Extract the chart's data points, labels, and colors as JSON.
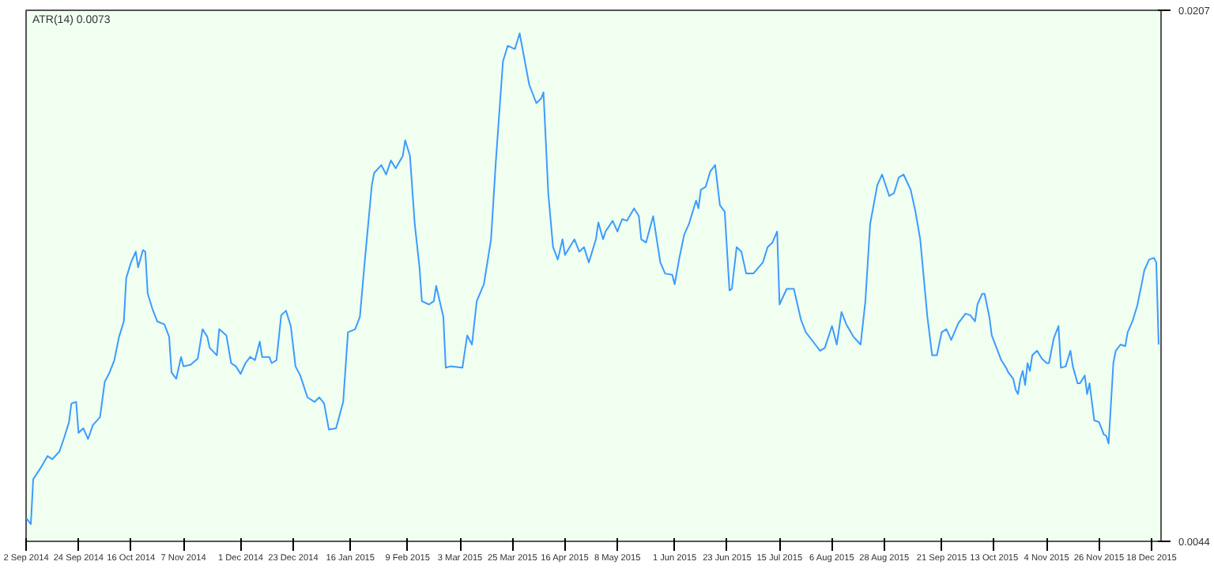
{
  "chart_data": {
    "type": "line",
    "title": "ATR(14) 0.0073",
    "x": [
      "2014-09-02",
      "2014-09-04",
      "2014-09-05",
      "2014-09-08",
      "2014-09-11",
      "2014-09-13",
      "2014-09-16",
      "2014-09-18",
      "2014-09-20",
      "2014-09-21",
      "2014-09-23",
      "2014-09-24",
      "2014-09-26",
      "2014-09-28",
      "2014-09-30",
      "2014-10-03",
      "2014-10-05",
      "2014-10-07",
      "2014-10-09",
      "2014-10-11",
      "2014-10-13",
      "2014-10-14",
      "2014-10-16",
      "2014-10-18",
      "2014-10-19",
      "2014-10-21",
      "2014-10-22",
      "2014-10-23",
      "2014-10-25",
      "2014-10-27",
      "2014-10-30",
      "2014-11-01",
      "2014-11-02",
      "2014-11-04",
      "2014-11-06",
      "2014-11-07",
      "2014-11-10",
      "2014-11-13",
      "2014-11-15",
      "2014-11-17",
      "2014-11-18",
      "2014-11-21",
      "2014-11-22",
      "2014-11-25",
      "2014-11-27",
      "2014-11-29",
      "2014-12-01",
      "2014-12-03",
      "2014-12-05",
      "2014-12-07",
      "2014-12-09",
      "2014-12-10",
      "2014-12-13",
      "2014-12-14",
      "2014-12-16",
      "2014-12-18",
      "2014-12-20",
      "2014-12-22",
      "2014-12-24",
      "2014-12-26",
      "2014-12-29",
      "2015-01-01",
      "2015-01-03",
      "2015-01-05",
      "2015-01-07",
      "2015-01-10",
      "2015-01-13",
      "2015-01-15",
      "2015-01-18",
      "2015-01-20",
      "2015-01-22",
      "2015-01-25",
      "2015-01-26",
      "2015-01-29",
      "2015-01-31",
      "2015-02-02",
      "2015-02-04",
      "2015-02-07",
      "2015-02-08",
      "2015-02-10",
      "2015-02-12",
      "2015-02-14",
      "2015-02-15",
      "2015-02-18",
      "2015-02-20",
      "2015-02-21",
      "2015-02-24",
      "2015-02-25",
      "2015-02-27",
      "2015-03-04",
      "2015-03-06",
      "2015-03-08",
      "2015-03-10",
      "2015-03-13",
      "2015-03-16",
      "2015-03-18",
      "2015-03-21",
      "2015-03-23",
      "2015-03-26",
      "2015-03-28",
      "2015-04-01",
      "2015-04-04",
      "2015-04-06",
      "2015-04-07",
      "2015-04-09",
      "2015-04-11",
      "2015-04-13",
      "2015-04-15",
      "2015-04-16",
      "2015-04-18",
      "2015-04-20",
      "2015-04-22",
      "2015-04-24",
      "2015-04-26",
      "2015-04-29",
      "2015-04-30",
      "2015-05-02",
      "2015-05-03",
      "2015-05-06",
      "2015-05-08",
      "2015-05-10",
      "2015-05-12",
      "2015-05-15",
      "2015-05-17",
      "2015-05-18",
      "2015-05-20",
      "2015-05-23",
      "2015-05-26",
      "2015-05-28",
      "2015-05-31",
      "2015-06-01",
      "2015-06-03",
      "2015-06-05",
      "2015-06-07",
      "2015-06-10",
      "2015-06-11",
      "2015-06-12",
      "2015-06-14",
      "2015-06-16",
      "2015-06-18",
      "2015-06-20",
      "2015-06-22",
      "2015-06-24",
      "2015-06-25",
      "2015-06-27",
      "2015-06-29",
      "2015-07-01",
      "2015-07-04",
      "2015-07-08",
      "2015-07-10",
      "2015-07-12",
      "2015-07-14",
      "2015-07-15",
      "2015-07-18",
      "2015-07-21",
      "2015-07-24",
      "2015-07-26",
      "2015-07-30",
      "2015-08-01",
      "2015-08-03",
      "2015-08-06",
      "2015-08-08",
      "2015-08-10",
      "2015-08-12",
      "2015-08-15",
      "2015-08-18",
      "2015-08-20",
      "2015-08-22",
      "2015-08-25",
      "2015-08-27",
      "2015-08-30",
      "2015-09-01",
      "2015-09-03",
      "2015-09-05",
      "2015-09-08",
      "2015-09-10",
      "2015-09-12",
      "2015-09-15",
      "2015-09-17",
      "2015-09-19",
      "2015-09-21",
      "2015-09-23",
      "2015-09-25",
      "2015-09-28",
      "2015-10-01",
      "2015-10-03",
      "2015-10-05",
      "2015-10-06",
      "2015-10-08",
      "2015-10-09",
      "2015-10-11",
      "2015-10-12",
      "2015-10-14",
      "2015-10-16",
      "2015-10-18",
      "2015-10-19",
      "2015-10-21",
      "2015-10-22",
      "2015-10-23",
      "2015-10-24",
      "2015-10-25",
      "2015-10-26",
      "2015-10-27",
      "2015-10-28",
      "2015-10-29",
      "2015-10-31",
      "2015-11-02",
      "2015-11-04",
      "2015-11-05",
      "2015-11-07",
      "2015-11-08",
      "2015-11-09",
      "2015-11-10",
      "2015-11-12",
      "2015-11-14",
      "2015-11-15",
      "2015-11-17",
      "2015-11-18",
      "2015-11-20",
      "2015-11-21",
      "2015-11-22",
      "2015-11-23",
      "2015-11-24",
      "2015-11-26",
      "2015-11-28",
      "2015-11-29",
      "2015-11-30",
      "2015-12-02",
      "2015-12-03",
      "2015-12-05",
      "2015-12-07",
      "2015-12-08",
      "2015-12-10",
      "2015-12-12",
      "2015-12-14",
      "2015-12-15",
      "2015-12-17",
      "2015-12-19",
      "2015-12-20",
      "2015-12-21"
    ],
    "series": [
      {
        "color": "#3d9bff",
        "values": [
          0.00512,
          0.00493,
          0.00631,
          0.00664,
          0.00702,
          0.00692,
          0.00716,
          0.00759,
          0.00806,
          0.00863,
          0.00868,
          0.00773,
          0.00787,
          0.00754,
          0.00797,
          0.00821,
          0.0093,
          0.00958,
          0.00996,
          0.01068,
          0.01115,
          0.01248,
          0.01296,
          0.01329,
          0.01281,
          0.01334,
          0.01329,
          0.01201,
          0.01153,
          0.01115,
          0.01106,
          0.01068,
          0.00958,
          0.00939,
          0.01006,
          0.00977,
          0.00982,
          0.01001,
          0.01091,
          0.01068,
          0.01034,
          0.01011,
          0.01091,
          0.01072,
          0.00987,
          0.00977,
          0.00954,
          0.00987,
          0.01006,
          0.00996,
          0.01053,
          0.01006,
          0.01006,
          0.00987,
          0.00996,
          0.01134,
          0.01148,
          0.01101,
          0.00977,
          0.00949,
          0.00882,
          0.00868,
          0.00882,
          0.00863,
          0.00783,
          0.00787,
          0.00868,
          0.01082,
          0.01091,
          0.01129,
          0.01296,
          0.01533,
          0.01571,
          0.01595,
          0.01566,
          0.01609,
          0.01585,
          0.01623,
          0.01671,
          0.01623,
          0.01414,
          0.01281,
          0.01177,
          0.01167,
          0.01177,
          0.01224,
          0.01129,
          0.00973,
          0.00977,
          0.00973,
          0.01072,
          0.01044,
          0.01177,
          0.01229,
          0.01367,
          0.01604,
          0.01913,
          0.01961,
          0.01951,
          0.01999,
          0.01842,
          0.01785,
          0.01799,
          0.01818,
          0.01509,
          0.01343,
          0.01305,
          0.01367,
          0.01319,
          0.01343,
          0.01367,
          0.01329,
          0.01343,
          0.01296,
          0.01367,
          0.01419,
          0.01367,
          0.01391,
          0.01424,
          0.01391,
          0.01429,
          0.01424,
          0.01462,
          0.01438,
          0.01367,
          0.01357,
          0.01438,
          0.01296,
          0.01262,
          0.01258,
          0.01229,
          0.0131,
          0.01381,
          0.01414,
          0.01486,
          0.01462,
          0.01519,
          0.01528,
          0.01576,
          0.01595,
          0.01471,
          0.01452,
          0.0121,
          0.01215,
          0.01343,
          0.01329,
          0.01262,
          0.01262,
          0.01296,
          0.01343,
          0.01357,
          0.01391,
          0.01167,
          0.01215,
          0.01215,
          0.0112,
          0.01082,
          0.01044,
          0.01025,
          0.01034,
          0.01101,
          0.01044,
          0.01144,
          0.01106,
          0.01068,
          0.01044,
          0.01177,
          0.01414,
          0.01533,
          0.01566,
          0.015,
          0.01509,
          0.01557,
          0.01566,
          0.01519,
          0.01452,
          0.01367,
          0.01129,
          0.01011,
          0.01011,
          0.01082,
          0.01091,
          0.01058,
          0.0111,
          0.01139,
          0.01134,
          0.01115,
          0.01167,
          0.012,
          0.012,
          0.01129,
          0.01072,
          0.01034,
          0.00996,
          0.00973,
          0.00958,
          0.00939,
          0.00906,
          0.00892,
          0.00939,
          0.00963,
          0.0092,
          0.00987,
          0.00963,
          0.01011,
          0.01025,
          0.01001,
          0.00987,
          0.00987,
          0.01063,
          0.01082,
          0.01101,
          0.00973,
          0.00977,
          0.01025,
          0.00977,
          0.00925,
          0.00925,
          0.00949,
          0.00892,
          0.00925,
          0.00868,
          0.00811,
          0.00806,
          0.00768,
          0.00764,
          0.0074,
          0.00987,
          0.01025,
          0.01044,
          0.01039,
          0.01082,
          0.01115,
          0.01163,
          0.01234,
          0.01272,
          0.01305,
          0.0131,
          0.01296,
          0.01044
        ]
      }
    ],
    "xlim": [
      "2014-09-02",
      "2015-12-22"
    ],
    "xticks": [
      {
        "value": "2014-09-02",
        "label": "2 Sep 2014"
      },
      {
        "value": "2014-09-24",
        "label": "24 Sep 2014"
      },
      {
        "value": "2014-10-16",
        "label": "16 Oct 2014"
      },
      {
        "value": "2014-11-07",
        "label": "7 Nov 2014"
      },
      {
        "value": "2014-12-01",
        "label": "1 Dec 2014"
      },
      {
        "value": "2014-12-23",
        "label": "23 Dec 2014"
      },
      {
        "value": "2015-01-16",
        "label": "16 Jan 2015"
      },
      {
        "value": "2015-02-09",
        "label": "9 Feb 2015"
      },
      {
        "value": "2015-03-03",
        "label": "3 Mar 2015"
      },
      {
        "value": "2015-03-25",
        "label": "25 Mar 2015"
      },
      {
        "value": "2015-04-16",
        "label": "16 Apr 2015"
      },
      {
        "value": "2015-05-08",
        "label": "8 May 2015"
      },
      {
        "value": "2015-06-01",
        "label": "1 Jun 2015"
      },
      {
        "value": "2015-06-23",
        "label": "23 Jun 2015"
      },
      {
        "value": "2015-07-15",
        "label": "15 Jul 2015"
      },
      {
        "value": "2015-08-06",
        "label": "6 Aug 2015"
      },
      {
        "value": "2015-08-28",
        "label": "28 Aug 2015"
      },
      {
        "value": "2015-09-21",
        "label": "21 Sep 2015"
      },
      {
        "value": "2015-10-13",
        "label": "13 Oct 2015"
      },
      {
        "value": "2015-11-04",
        "label": "4 Nov 2015"
      },
      {
        "value": "2015-11-26",
        "label": "26 Nov 2015"
      },
      {
        "value": "2015-12-18",
        "label": "18 Dec 2015"
      }
    ],
    "ylim": [
      0.0044,
      0.0207
    ],
    "yticks": [
      {
        "value": 0.0044,
        "label": "0.0044"
      },
      {
        "value": 0.0207,
        "label": "0.0207"
      }
    ],
    "grid": false
  }
}
